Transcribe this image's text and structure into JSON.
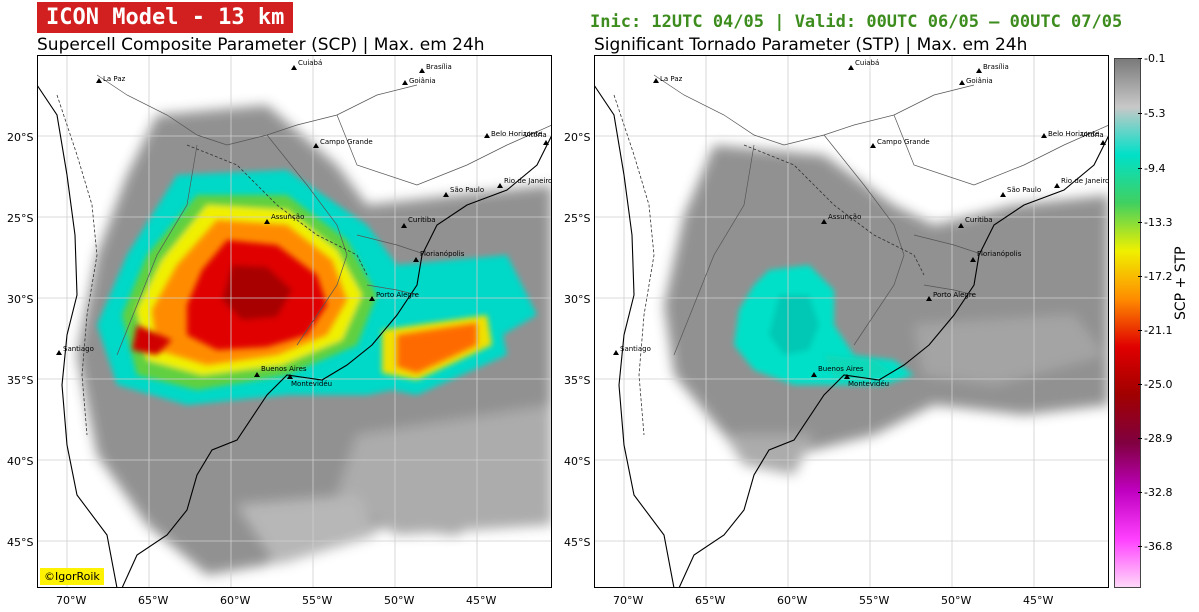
{
  "header": {
    "model_badge": "ICON Model - 13 km",
    "validity": "Inic: 12UTC 04/05 | Valid: 00UTC 06/05 – 00UTC 07/05"
  },
  "left_panel": {
    "title": "Supercell Composite Parameter (SCP) | Max. em 24h"
  },
  "right_panel": {
    "title": "Significant Tornado Parameter (STP) | Max. em 24h"
  },
  "axes": {
    "lat_ticks": [
      "20°S",
      "25°S",
      "30°S",
      "35°S",
      "40°S",
      "45°S"
    ],
    "lon_ticks": [
      "70°W",
      "65°W",
      "60°W",
      "55°W",
      "50°W",
      "45°W"
    ]
  },
  "cities": [
    {
      "name": "La Paz",
      "lon": -68.1,
      "lat": -16.5
    },
    {
      "name": "Cuiabá",
      "lon": -56.1,
      "lat": -15.6
    },
    {
      "name": "Brasília",
      "lon": -47.9,
      "lat": -15.8
    },
    {
      "name": "Goiânia",
      "lon": -49.3,
      "lat": -16.7
    },
    {
      "name": "Belo Horizonte",
      "lon": -43.9,
      "lat": -19.9
    },
    {
      "name": "Vitória",
      "lon": -40.3,
      "lat": -20.3
    },
    {
      "name": "Campo Grande",
      "lon": -54.6,
      "lat": -20.5
    },
    {
      "name": "São Paulo",
      "lon": -46.6,
      "lat": -23.5
    },
    {
      "name": "Rio de Janeiro",
      "lon": -43.2,
      "lat": -22.9
    },
    {
      "name": "Assunção",
      "lon": -57.6,
      "lat": -25.3
    },
    {
      "name": "Curitiba",
      "lon": -49.3,
      "lat": -25.4
    },
    {
      "name": "Florianópolis",
      "lon": -48.5,
      "lat": -27.6
    },
    {
      "name": "Porto Alegre",
      "lon": -51.2,
      "lat": -30.0
    },
    {
      "name": "Santiago",
      "lon": -70.7,
      "lat": -33.4
    },
    {
      "name": "Buenos Aires",
      "lon": -58.4,
      "lat": -34.6
    },
    {
      "name": "Montevidéu",
      "lon": -56.2,
      "lat": -34.9
    }
  ],
  "colorbar": {
    "label": "SCP + STP",
    "ticks": [
      "-0.1",
      "-5.3",
      "-9.4",
      "-13.3",
      "-17.2",
      "-21.1",
      "-25.0",
      "-28.9",
      "-32.8",
      "-36.8"
    ],
    "colors": [
      "#7a7a7a",
      "#c8c8c8",
      "#00e0c8",
      "#40d060",
      "#f0f000",
      "#ff8c00",
      "#e00000",
      "#a00000",
      "#800040",
      "#c000c0",
      "#ff40ff",
      "#ffd8f8"
    ]
  },
  "credit": "©IgorRoik"
}
